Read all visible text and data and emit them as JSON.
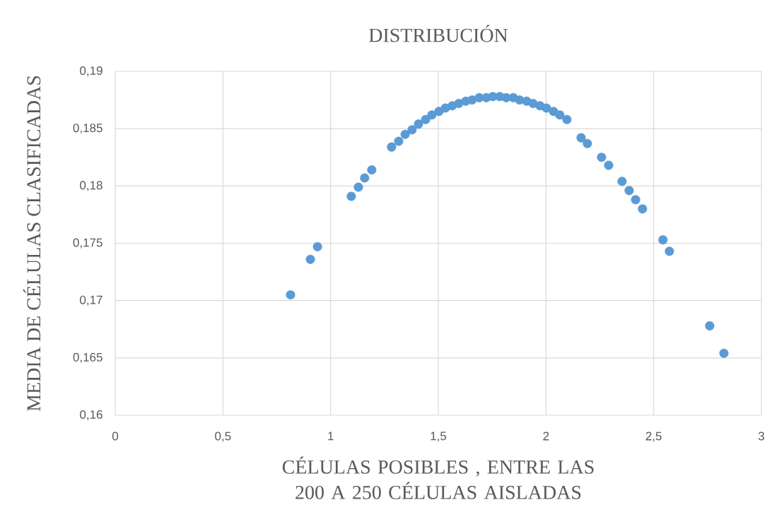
{
  "chart_data": {
    "type": "scatter",
    "title": "DISTRIBUCIÓN",
    "xlabel": "CÉLULAS POSIBLES , ENTRE LAS 200 A 250 CÉLULAS AISLADAS",
    "ylabel": "MEDIA DE CÉLULAS CLASIFICADAS",
    "x": [
      0.814,
      0.906,
      0.939,
      1.096,
      1.129,
      1.158,
      1.191,
      1.283,
      1.316,
      1.346,
      1.378,
      1.408,
      1.441,
      1.47,
      1.503,
      1.533,
      1.565,
      1.595,
      1.628,
      1.657,
      1.69,
      1.723,
      1.753,
      1.785,
      1.815,
      1.848,
      1.877,
      1.91,
      1.94,
      1.972,
      2.002,
      2.035,
      2.064,
      2.097,
      2.163,
      2.192,
      2.258,
      2.291,
      2.353,
      2.386,
      2.416,
      2.448,
      2.543,
      2.573,
      2.76,
      2.826
    ],
    "series": [
      {
        "color": "#5b9bd5",
        "values": [
          0.1705,
          0.1736,
          0.1747,
          0.1791,
          0.1799,
          0.1807,
          0.1814,
          0.1834,
          0.1839,
          0.1845,
          0.1849,
          0.1854,
          0.1858,
          0.1862,
          0.1865,
          0.1868,
          0.187,
          0.1872,
          0.1874,
          0.1875,
          0.1877,
          0.1877,
          0.1878,
          0.1878,
          0.1877,
          0.1877,
          0.1875,
          0.1874,
          0.1872,
          0.187,
          0.1868,
          0.1865,
          0.1862,
          0.1858,
          0.1842,
          0.1837,
          0.1825,
          0.1818,
          0.1804,
          0.1796,
          0.1788,
          0.178,
          0.1753,
          0.1743,
          0.1678,
          0.1654
        ]
      }
    ],
    "xlim": [
      0,
      3
    ],
    "ylim": [
      0.16,
      0.19
    ],
    "xticks": [
      0,
      {
        "value": 0.5,
        "label": "0,5"
      },
      1,
      {
        "value": 1.5,
        "label": "1,5"
      },
      2,
      {
        "value": 2.5,
        "label": "2,5"
      },
      3
    ],
    "yticks": [
      {
        "value": 0.16,
        "label": "0,16"
      },
      {
        "value": 0.165,
        "label": "0,165"
      },
      {
        "value": 0.17,
        "label": "0,17"
      },
      {
        "value": 0.175,
        "label": "0,175"
      },
      {
        "value": 0.18,
        "label": "0,18"
      },
      {
        "value": 0.185,
        "label": "0,185"
      },
      {
        "value": 0.19,
        "label": "0,19"
      }
    ],
    "grid": true,
    "marker": "circle"
  }
}
